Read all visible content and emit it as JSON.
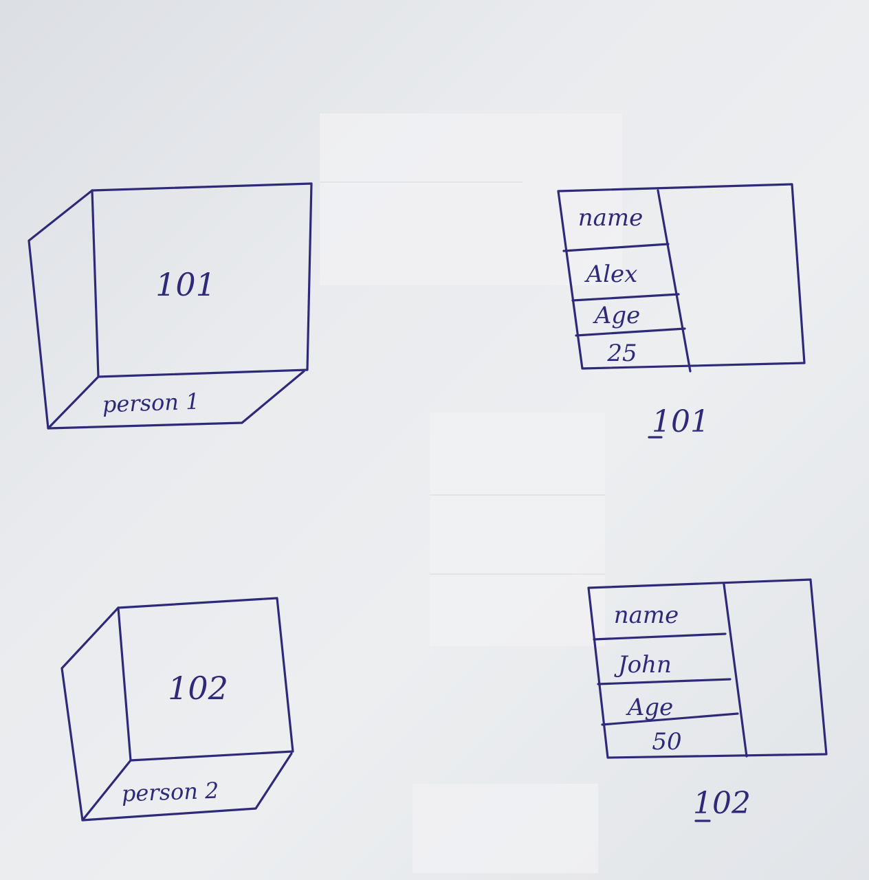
{
  "colors": {
    "ink": "#2f2a78",
    "paper": "#e9ebee"
  },
  "reference_boxes": [
    {
      "id_text": "101",
      "label": "person 1"
    },
    {
      "id_text": "102",
      "label": "person 2"
    }
  ],
  "objects": [
    {
      "cells": [
        "name",
        "Alex",
        "Age",
        "25"
      ],
      "address": "101"
    },
    {
      "cells": [
        "name",
        "John",
        "Age",
        "50"
      ],
      "address": "102"
    }
  ]
}
